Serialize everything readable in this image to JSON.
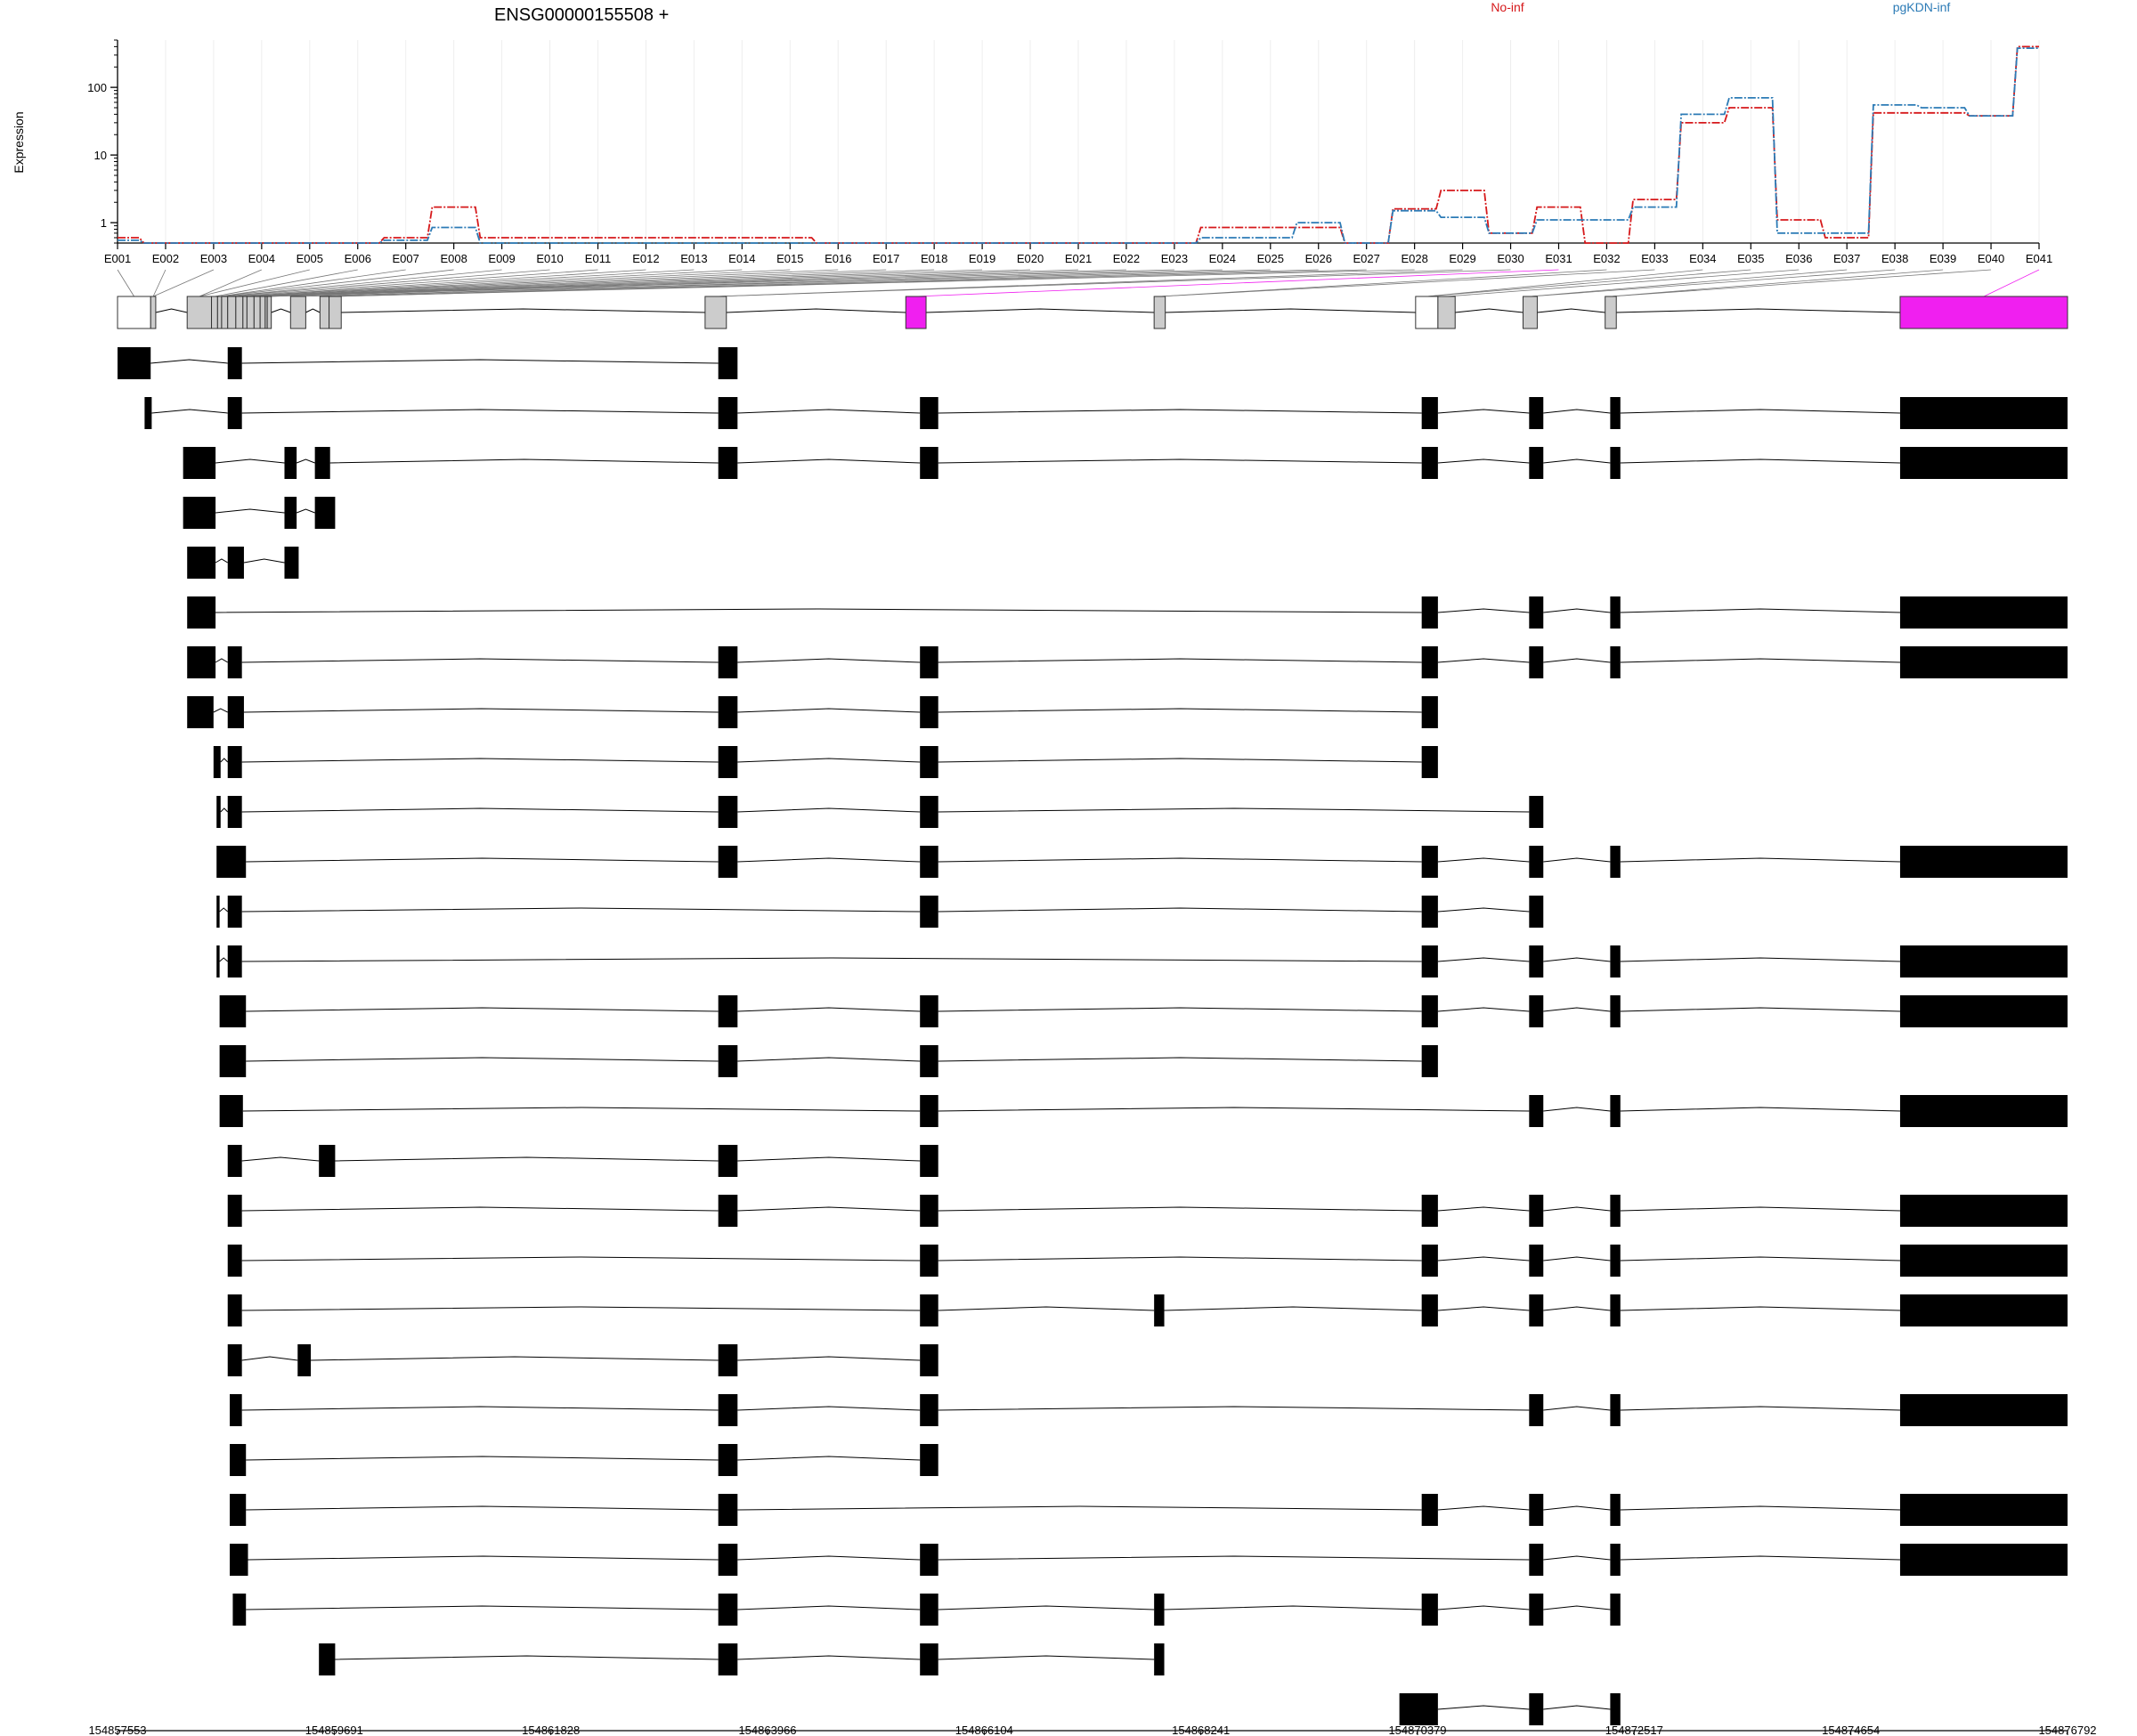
{
  "chart_data": {
    "type": "line",
    "title": "ENSG00000155508 +",
    "ylabel": "Expression",
    "yscale": "log",
    "ylim": [
      0.5,
      500
    ],
    "yticks": [
      1,
      10,
      100
    ],
    "ytick_labels": [
      "1",
      "10",
      "100"
    ],
    "legend": {
      "placement": "top-right",
      "entries": [
        "No-inf",
        "pgKDN-inf"
      ]
    },
    "exons": [
      "E001",
      "E002",
      "E003",
      "E004",
      "E005",
      "E006",
      "E007",
      "E008",
      "E009",
      "E010",
      "E011",
      "E012",
      "E013",
      "E014",
      "E015",
      "E016",
      "E017",
      "E018",
      "E019",
      "E020",
      "E021",
      "E022",
      "E023",
      "E024",
      "E025",
      "E026",
      "E027",
      "E028",
      "E029",
      "E030",
      "E031",
      "E032",
      "E033",
      "E034",
      "E035",
      "E036",
      "E037",
      "E038",
      "E039",
      "E040",
      "E041"
    ],
    "series": [
      {
        "name": "No-inf",
        "color": "#d6191b",
        "values": [
          0.6,
          0.5,
          0.5,
          0.5,
          0.5,
          0.5,
          0.6,
          1.7,
          0.6,
          0.6,
          0.6,
          0.6,
          0.6,
          0.6,
          0.6,
          0.5,
          0.5,
          0.5,
          0.5,
          0.5,
          0.5,
          0.5,
          0.5,
          0.85,
          0.85,
          0.85,
          0.5,
          1.6,
          3.0,
          0.7,
          1.7,
          0.5,
          2.2,
          30,
          50,
          1.1,
          0.6,
          42,
          42,
          38,
          400
        ]
      },
      {
        "name": "pgKDN-inf",
        "color": "#2c7bb6",
        "values": [
          0.55,
          0.5,
          0.5,
          0.5,
          0.5,
          0.5,
          0.55,
          0.85,
          0.5,
          0.5,
          0.5,
          0.5,
          0.5,
          0.5,
          0.5,
          0.5,
          0.5,
          0.5,
          0.5,
          0.5,
          0.5,
          0.5,
          0.5,
          0.6,
          0.6,
          1.0,
          0.5,
          1.5,
          1.2,
          0.7,
          1.1,
          1.1,
          1.7,
          40,
          70,
          0.7,
          0.7,
          55,
          50,
          38,
          380
        ]
      }
    ],
    "genomic_axis": {
      "range": [
        154857553,
        154876792
      ],
      "tick_labels": [
        "154857553",
        "154859691",
        "154861828",
        "154863966",
        "154866104",
        "154868241",
        "154870379",
        "154872517",
        "154874654",
        "154876792"
      ]
    },
    "exon_bins": [
      [
        154857553,
        154857880
      ],
      [
        154857880,
        154857930
      ],
      [
        154858240,
        154858480
      ],
      [
        154858480,
        154858540
      ],
      [
        154858540,
        154858580
      ],
      [
        154858580,
        154858640
      ],
      [
        154858640,
        154858720
      ],
      [
        154858720,
        154858790
      ],
      [
        154858790,
        154858830
      ],
      [
        154858830,
        154858900
      ],
      [
        154858900,
        154858960
      ],
      [
        154858960,
        154859010
      ],
      [
        154859010,
        154859030
      ],
      [
        154859030,
        154859070
      ],
      [
        154859260,
        154859410
      ],
      [
        154859550,
        154859640
      ],
      [
        154859640,
        154859760
      ],
      [
        154863350,
        154863560
      ],
      [
        154865330,
        154865530
      ],
      [
        154867780,
        154867890
      ],
      [
        154870360,
        154870580
      ],
      [
        154870580,
        154870750
      ],
      [
        154871420,
        154871560
      ],
      [
        154872230,
        154872340
      ],
      [
        154875140,
        154876792
      ]
    ],
    "highlight_color": "#f01ff0",
    "highlighted_bins": [
      18,
      24
    ],
    "transcripts": [
      [
        [
          154857553,
          154857880
        ],
        [
          154858640,
          154858780
        ],
        [
          154863480,
          154863670
        ]
      ],
      [
        [
          154857820,
          154857890
        ],
        [
          154858640,
          154858780
        ],
        [
          154863480,
          154863670
        ],
        [
          154865470,
          154865650
        ],
        [
          154870420,
          154870580
        ],
        [
          154871480,
          154871620
        ],
        [
          154872280,
          154872380
        ],
        [
          154875140,
          154876792
        ]
      ],
      [
        [
          154858200,
          154858520
        ],
        [
          154859200,
          154859320
        ],
        [
          154859500,
          154859650
        ],
        [
          154863480,
          154863670
        ],
        [
          154865470,
          154865650
        ],
        [
          154870420,
          154870580
        ],
        [
          154871480,
          154871620
        ],
        [
          154872280,
          154872380
        ],
        [
          154875140,
          154876792
        ]
      ],
      [
        [
          154858200,
          154858520
        ],
        [
          154859200,
          154859320
        ],
        [
          154859500,
          154859700
        ]
      ],
      [
        [
          154858240,
          154858520
        ],
        [
          154858640,
          154858800
        ],
        [
          154859200,
          154859340
        ]
      ],
      [
        [
          154858240,
          154858520
        ],
        [
          154870420,
          154870580
        ],
        [
          154871480,
          154871620
        ],
        [
          154872280,
          154872380
        ],
        [
          154875140,
          154876792
        ]
      ],
      [
        [
          154858240,
          154858520
        ],
        [
          154858640,
          154858780
        ],
        [
          154863480,
          154863670
        ],
        [
          154865470,
          154865650
        ],
        [
          154870420,
          154870580
        ],
        [
          154871480,
          154871620
        ],
        [
          154872280,
          154872380
        ],
        [
          154875140,
          154876792
        ]
      ],
      [
        [
          154858240,
          154858500
        ],
        [
          154858640,
          154858800
        ],
        [
          154863480,
          154863670
        ],
        [
          154865470,
          154865650
        ],
        [
          154870420,
          154870580
        ]
      ],
      [
        [
          154858500,
          154858570
        ],
        [
          154858640,
          154858780
        ],
        [
          154863480,
          154863670
        ],
        [
          154865470,
          154865650
        ],
        [
          154870420,
          154870580
        ]
      ],
      [
        [
          154858530,
          154858570
        ],
        [
          154858640,
          154858780
        ],
        [
          154863480,
          154863670
        ],
        [
          154865470,
          154865650
        ],
        [
          154871480,
          154871620
        ]
      ],
      [
        [
          154858530,
          154858820
        ],
        [
          154863480,
          154863670
        ],
        [
          154865470,
          154865650
        ],
        [
          154870420,
          154870580
        ],
        [
          154871480,
          154871620
        ],
        [
          154872280,
          154872380
        ],
        [
          154875140,
          154876792
        ]
      ],
      [
        [
          154858530,
          154858560
        ],
        [
          154858640,
          154858780
        ],
        [
          154865470,
          154865650
        ],
        [
          154870420,
          154870580
        ],
        [
          154871480,
          154871620
        ]
      ],
      [
        [
          154858530,
          154858560
        ],
        [
          154858640,
          154858780
        ],
        [
          154870420,
          154870580
        ],
        [
          154871480,
          154871620
        ],
        [
          154872280,
          154872380
        ],
        [
          154875140,
          154876792
        ]
      ],
      [
        [
          154858560,
          154858820
        ],
        [
          154863480,
          154863670
        ],
        [
          154865470,
          154865650
        ],
        [
          154870420,
          154870580
        ],
        [
          154871480,
          154871620
        ],
        [
          154872280,
          154872380
        ],
        [
          154875140,
          154876792
        ]
      ],
      [
        [
          154858560,
          154858820
        ],
        [
          154863480,
          154863670
        ],
        [
          154865470,
          154865650
        ],
        [
          154870420,
          154870580
        ]
      ],
      [
        [
          154858560,
          154858790
        ],
        [
          154865470,
          154865650
        ],
        [
          154871480,
          154871620
        ],
        [
          154872280,
          154872380
        ],
        [
          154875140,
          154876792
        ]
      ],
      [
        [
          154858640,
          154858780
        ],
        [
          154859540,
          154859700
        ],
        [
          154863480,
          154863670
        ],
        [
          154865470,
          154865650
        ]
      ],
      [
        [
          154858640,
          154858780
        ],
        [
          154863480,
          154863670
        ],
        [
          154865470,
          154865650
        ],
        [
          154870420,
          154870580
        ],
        [
          154871480,
          154871620
        ],
        [
          154872280,
          154872380
        ],
        [
          154875140,
          154876792
        ]
      ],
      [
        [
          154858640,
          154858780
        ],
        [
          154865470,
          154865650
        ],
        [
          154870420,
          154870580
        ],
        [
          154871480,
          154871620
        ],
        [
          154872280,
          154872380
        ],
        [
          154875140,
          154876792
        ]
      ],
      [
        [
          154858640,
          154858780
        ],
        [
          154865470,
          154865650
        ],
        [
          154867780,
          154867880
        ],
        [
          154870420,
          154870580
        ],
        [
          154871480,
          154871620
        ],
        [
          154872280,
          154872380
        ],
        [
          154875140,
          154876792
        ]
      ],
      [
        [
          154858640,
          154858780
        ],
        [
          154859330,
          154859460
        ],
        [
          154863480,
          154863670
        ],
        [
          154865470,
          154865650
        ]
      ],
      [
        [
          154858660,
          154858780
        ],
        [
          154863480,
          154863670
        ],
        [
          154865470,
          154865650
        ],
        [
          154871480,
          154871620
        ],
        [
          154872280,
          154872380
        ],
        [
          154875140,
          154876792
        ]
      ],
      [
        [
          154858660,
          154858820
        ],
        [
          154863480,
          154863670
        ],
        [
          154865470,
          154865650
        ]
      ],
      [
        [
          154858660,
          154858820
        ],
        [
          154863480,
          154863670
        ],
        [
          154870420,
          154870580
        ],
        [
          154871480,
          154871620
        ],
        [
          154872280,
          154872380
        ],
        [
          154875140,
          154876792
        ]
      ],
      [
        [
          154858660,
          154858840
        ],
        [
          154863480,
          154863670
        ],
        [
          154865470,
          154865650
        ],
        [
          154871480,
          154871620
        ],
        [
          154872280,
          154872380
        ],
        [
          154875140,
          154876792
        ]
      ],
      [
        [
          154858690,
          154858820
        ],
        [
          154863480,
          154863670
        ],
        [
          154865470,
          154865650
        ],
        [
          154867780,
          154867880
        ],
        [
          154870420,
          154870580
        ],
        [
          154871480,
          154871620
        ],
        [
          154872280,
          154872380
        ]
      ],
      [
        [
          154859540,
          154859700
        ],
        [
          154863480,
          154863670
        ],
        [
          154865470,
          154865650
        ],
        [
          154867780,
          154867880
        ]
      ],
      [
        [
          154870200,
          154870580
        ],
        [
          154871480,
          154871620
        ],
        [
          154872280,
          154872380
        ]
      ]
    ]
  }
}
